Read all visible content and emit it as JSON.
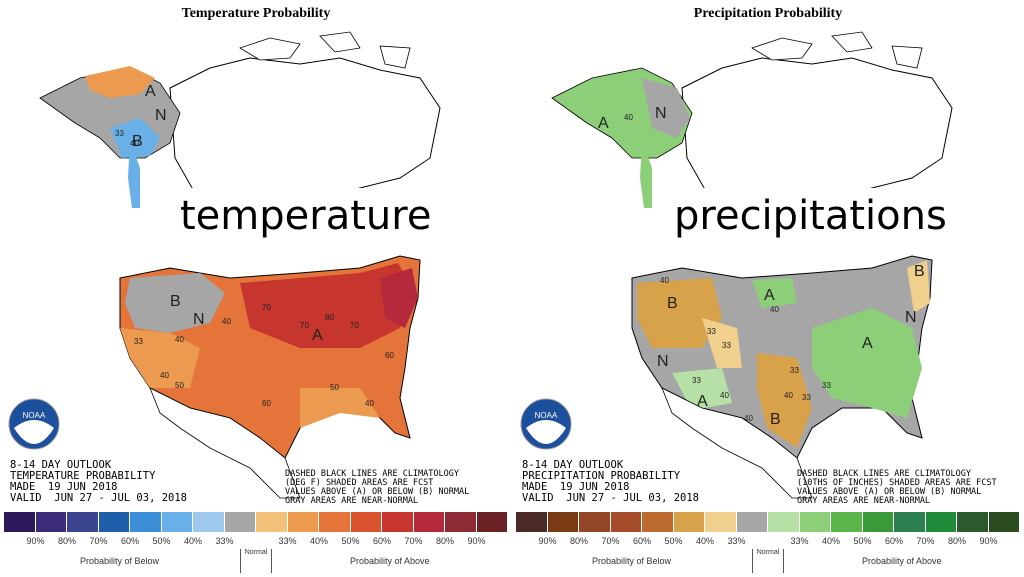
{
  "temperature": {
    "title": "Temperature Probability",
    "overlay": "temperature",
    "info_lines": [
      "8-14 DAY OUTLOOK",
      "TEMPERATURE PROBABILITY",
      "MADE  19 JUN 2018",
      "VALID  JUN 27 - JUL 03, 2018"
    ],
    "note_lines": [
      "DASHED BLACK LINES ARE CLIMATOLOGY",
      "(DEG F) SHADED AREAS ARE FCST",
      "VALUES ABOVE (A) OR BELOW (B) NORMAL",
      "GRAY AREAS ARE NEAR-NORMAL"
    ],
    "colors": [
      "#2d1a5c",
      "#3c2c7a",
      "#3b4590",
      "#1f5ea8",
      "#3c8fd6",
      "#6ab0e8",
      "#9ec8ec",
      "#a6a6a6",
      "#f3c27a",
      "#eb9a4f",
      "#e4743a",
      "#d9542e",
      "#c7352f",
      "#b42a3c",
      "#8c2a35",
      "#6b2225"
    ],
    "ticks": [
      "90%",
      "80%",
      "70%",
      "60%",
      "50%",
      "40%",
      "33%",
      "33%",
      "40%",
      "50%",
      "60%",
      "70%",
      "80%",
      "90%"
    ],
    "below_caption": "Probability of Below",
    "normal_caption": "Normal",
    "above_caption": "Probability of Above",
    "regions": [
      "A",
      "N",
      "B",
      "B",
      "N",
      "A"
    ],
    "contours": [
      "33",
      "40",
      "40",
      "33",
      "40",
      "50",
      "70",
      "60",
      "70",
      "80",
      "70",
      "40",
      "50",
      "60",
      "40"
    ]
  },
  "precipitation": {
    "title": "Precipitation Probability",
    "overlay": "precipitations",
    "info_lines": [
      "8-14 DAY OUTLOOK",
      "PRECIPITATION PROBABILITY",
      "MADE  19 JUN 2018",
      "VALID  JUN 27 - JUL 03, 2018"
    ],
    "note_lines": [
      "DASHED BLACK LINES ARE CLIMATOLOGY",
      "(10THS OF INCHES) SHADED AREAS ARE FCST",
      "VALUES ABOVE (A) OR BELOW (B) NORMAL",
      "GRAY AREAS ARE NEAR-NORMAL"
    ],
    "colors": [
      "#4a2a24",
      "#7a3a14",
      "#934626",
      "#a44c2a",
      "#bd6a31",
      "#d8a24a",
      "#f0d08c",
      "#a6a6a6",
      "#b6e0a6",
      "#8dce79",
      "#5cb54a",
      "#3a9a3a",
      "#2c7f4f",
      "#1e8a3a",
      "#2d5a2d",
      "#2a4a20"
    ],
    "ticks": [
      "90%",
      "80%",
      "70%",
      "60%",
      "50%",
      "40%",
      "33%",
      "33%",
      "40%",
      "50%",
      "60%",
      "70%",
      "80%",
      "90%"
    ],
    "below_caption": "Probability of Below",
    "normal_caption": "Normal",
    "above_caption": "Probability of Above",
    "regions": [
      "A",
      "N",
      "B",
      "A",
      "N",
      "A",
      "B",
      "A",
      "B",
      "N"
    ],
    "contours": [
      "40",
      "40",
      "40",
      "33",
      "33",
      "33",
      "40",
      "40",
      "33",
      "33",
      "40",
      "33"
    ]
  },
  "logo_text": "NOAA"
}
